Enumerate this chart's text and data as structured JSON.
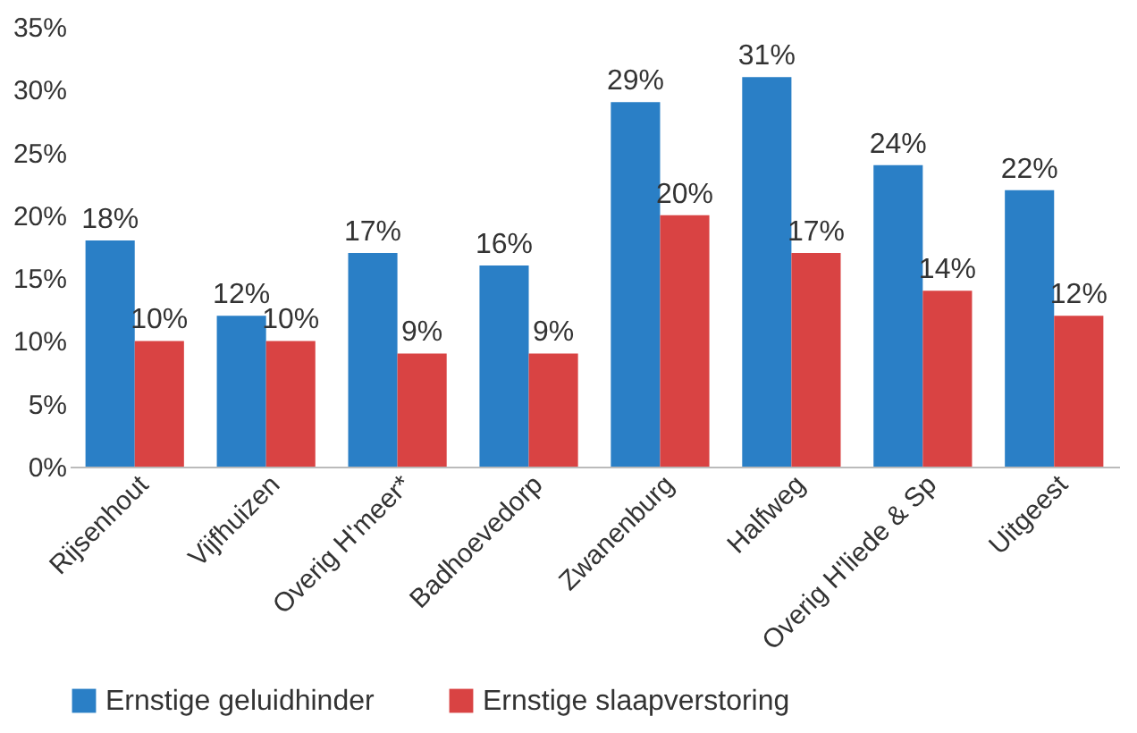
{
  "chart_data": {
    "type": "bar",
    "categories": [
      "Rijsenhout",
      "Vijfhuizen",
      "Overig H'meer*",
      "Badhoevedorp",
      "Zwanenburg",
      "Halfweg",
      "Overig H'liede & Sp",
      "Uitgeest"
    ],
    "series": [
      {
        "name": "Ernstige geluidhinder",
        "color": "#2a7fc6",
        "values": [
          18,
          12,
          17,
          16,
          29,
          31,
          24,
          22
        ],
        "value_labels": [
          "18%",
          "12%",
          "17%",
          "16%",
          "29%",
          "31%",
          "24%",
          "22%"
        ]
      },
      {
        "name": "Ernstige slaapverstoring",
        "color": "#d94343",
        "values": [
          10,
          10,
          9,
          9,
          20,
          17,
          14,
          12
        ],
        "value_labels": [
          "10%",
          "10%",
          "9%",
          "9%",
          "20%",
          "17%",
          "14%",
          "12%"
        ]
      }
    ],
    "ylim": [
      0,
      35
    ],
    "yticks": [
      {
        "value": 0,
        "label": "0%"
      },
      {
        "value": 5,
        "label": "5%"
      },
      {
        "value": 10,
        "label": "10%"
      },
      {
        "value": 15,
        "label": "15%"
      },
      {
        "value": 20,
        "label": "20%"
      },
      {
        "value": 25,
        "label": "25%"
      },
      {
        "value": 30,
        "label": "30%"
      },
      {
        "value": 35,
        "label": "35%"
      }
    ],
    "legend": "bottom"
  }
}
